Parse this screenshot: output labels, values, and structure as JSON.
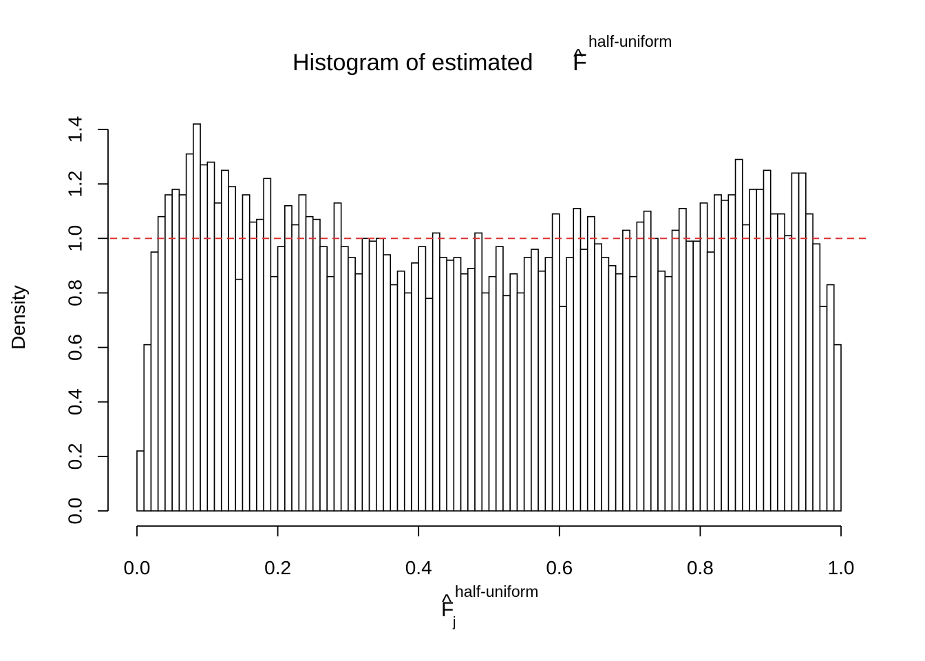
{
  "chart_data": {
    "type": "bar",
    "subtype": "histogram",
    "title": {
      "prefix": "Histogram of estimated ",
      "symbol": "F",
      "hat": "^",
      "superscript": "half-uniform"
    },
    "xlabel": {
      "symbol": "F",
      "hat": "^",
      "subscript": "j",
      "superscript": "half-uniform"
    },
    "ylabel": "Density",
    "xlim": [
      0,
      1
    ],
    "ylim": [
      0,
      1.4
    ],
    "x_ticks": [
      "0.0",
      "0.2",
      "0.4",
      "0.6",
      "0.8",
      "1.0"
    ],
    "y_ticks": [
      "0.0",
      "0.2",
      "0.4",
      "0.6",
      "0.8",
      "1.0",
      "1.2",
      "1.4"
    ],
    "bin_width": 0.01,
    "bin_start": 0.0,
    "values": [
      0.22,
      0.61,
      0.95,
      1.08,
      1.16,
      1.18,
      1.16,
      1.31,
      1.42,
      1.27,
      1.28,
      1.13,
      1.25,
      1.19,
      0.85,
      1.16,
      1.06,
      1.07,
      1.22,
      0.86,
      0.97,
      1.12,
      1.05,
      1.16,
      1.08,
      1.07,
      0.97,
      0.86,
      1.13,
      0.97,
      0.93,
      0.87,
      1.0,
      0.99,
      1.0,
      0.94,
      0.83,
      0.88,
      0.8,
      0.91,
      0.97,
      0.78,
      1.02,
      0.93,
      0.92,
      0.93,
      0.87,
      0.89,
      1.02,
      0.8,
      0.86,
      0.97,
      0.79,
      0.87,
      0.8,
      0.93,
      0.96,
      0.88,
      0.93,
      1.09,
      0.75,
      0.93,
      1.11,
      0.96,
      1.08,
      0.98,
      0.93,
      0.9,
      0.87,
      1.03,
      0.86,
      1.06,
      1.1,
      1.0,
      0.88,
      0.86,
      1.03,
      1.11,
      0.99,
      0.99,
      1.13,
      0.95,
      1.16,
      1.14,
      1.16,
      1.29,
      1.05,
      1.18,
      1.18,
      1.25,
      1.09,
      1.09,
      1.01,
      1.24,
      1.24,
      1.09,
      0.98,
      0.75,
      0.83,
      0.61
    ],
    "reference_line": {
      "y": 1.0,
      "style": "dashed",
      "color": "#e03030"
    },
    "bar_fill": "#ffffff",
    "bar_stroke": "#000000",
    "grid": false,
    "legend": "none"
  }
}
